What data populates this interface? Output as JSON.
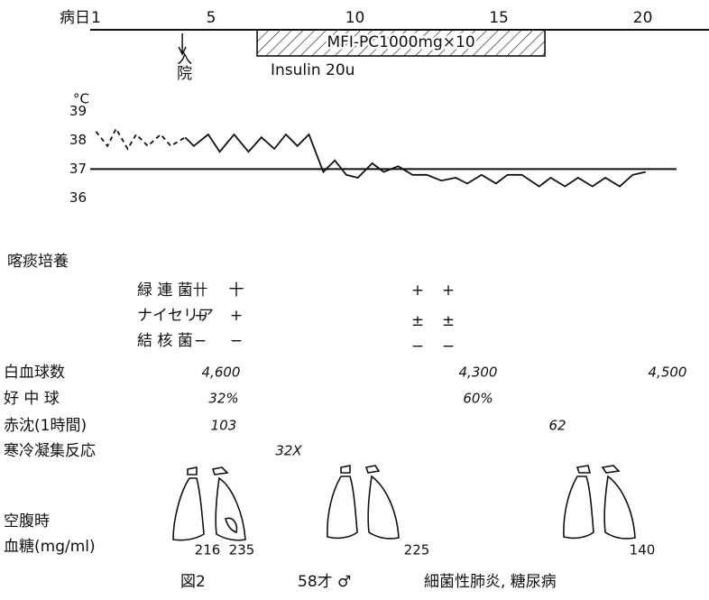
{
  "chart_data": {
    "type": "line",
    "day_label": "病日",
    "xlim": [
      0.8,
      21.8
    ],
    "xticks": [
      1,
      5,
      10,
      15,
      20
    ],
    "y_unit": "°C",
    "ylim": [
      35.7,
      39.2
    ],
    "yticks": [
      36,
      37,
      38,
      39
    ],
    "reference_line": 37,
    "color": "#111111",
    "x": [
      1.0,
      1.4,
      1.7,
      2.1,
      2.4,
      2.8,
      3.25,
      3.6,
      4.1,
      4.4,
      4.9,
      5.3,
      5.8,
      6.3,
      6.75,
      7.2,
      7.6,
      8.0,
      8.4,
      8.9,
      9.3,
      9.7,
      10.1,
      10.6,
      11.0,
      11.5,
      12.0,
      12.5,
      13.0,
      13.5,
      13.9,
      14.4,
      14.9,
      15.3,
      15.8,
      16.4,
      16.8,
      17.3,
      17.75,
      18.25,
      18.7,
      19.2,
      19.65,
      20.1
    ],
    "series": [
      {
        "dashed": true,
        "values": [
          38.3,
          37.8,
          38.4,
          37.7,
          38.2,
          37.8,
          38.2,
          37.8,
          38.1,
          null,
          null,
          null,
          null,
          null,
          null,
          null,
          null,
          null,
          null,
          null,
          null,
          null,
          null,
          null,
          null,
          null,
          null,
          null,
          null,
          null,
          null,
          null,
          null,
          null,
          null,
          null,
          null,
          null,
          null,
          null,
          null,
          null,
          null,
          null
        ]
      },
      {
        "dashed": false,
        "values": [
          null,
          null,
          null,
          null,
          null,
          null,
          null,
          null,
          38.1,
          37.8,
          38.2,
          37.6,
          38.2,
          37.6,
          38.1,
          37.7,
          38.2,
          37.8,
          38.2,
          36.9,
          37.3,
          36.8,
          36.7,
          37.2,
          36.9,
          37.1,
          36.8,
          36.8,
          36.6,
          36.7,
          36.5,
          36.8,
          36.5,
          36.8,
          36.8,
          36.4,
          36.7,
          36.4,
          36.7,
          36.4,
          36.7,
          36.4,
          36.8,
          36.9
        ]
      }
    ],
    "admission": {
      "day": 4,
      "label": "入院"
    },
    "treatment": {
      "label": "MFI-PC1000mg×10",
      "start": 6.6,
      "end": 16.6
    },
    "insulin_label": "Insulin 20u"
  },
  "sputum": {
    "title": "喀痰培養",
    "rows": [
      {
        "label": "緑 連 菌",
        "results": [
          "卄",
          "十",
          "+",
          "+"
        ]
      },
      {
        "label": "ナイセリア",
        "results": [
          "+",
          "+",
          "±",
          "±"
        ]
      },
      {
        "label": "結 核 菌",
        "results": [
          "−",
          "−",
          "−",
          "−"
        ]
      }
    ]
  },
  "labs": [
    {
      "label": "白血球数",
      "values": [
        "4,600",
        "4,300",
        "4,500"
      ]
    },
    {
      "label": "好 中 球",
      "values": [
        "32%",
        "60%"
      ]
    },
    {
      "label": "赤沈(1時間)",
      "values": [
        "103",
        "62"
      ]
    },
    {
      "label": "寒冷凝集反応",
      "values": [
        "32X"
      ]
    }
  ],
  "glucose": {
    "label_lines": [
      "空腹時",
      "血糖(mg/ml)"
    ],
    "values": [
      "216",
      "235",
      "225",
      "140"
    ]
  },
  "caption": {
    "figure": "図2",
    "patient": "58才 ♂",
    "diagnosis": "細菌性肺炎, 糖尿病"
  }
}
